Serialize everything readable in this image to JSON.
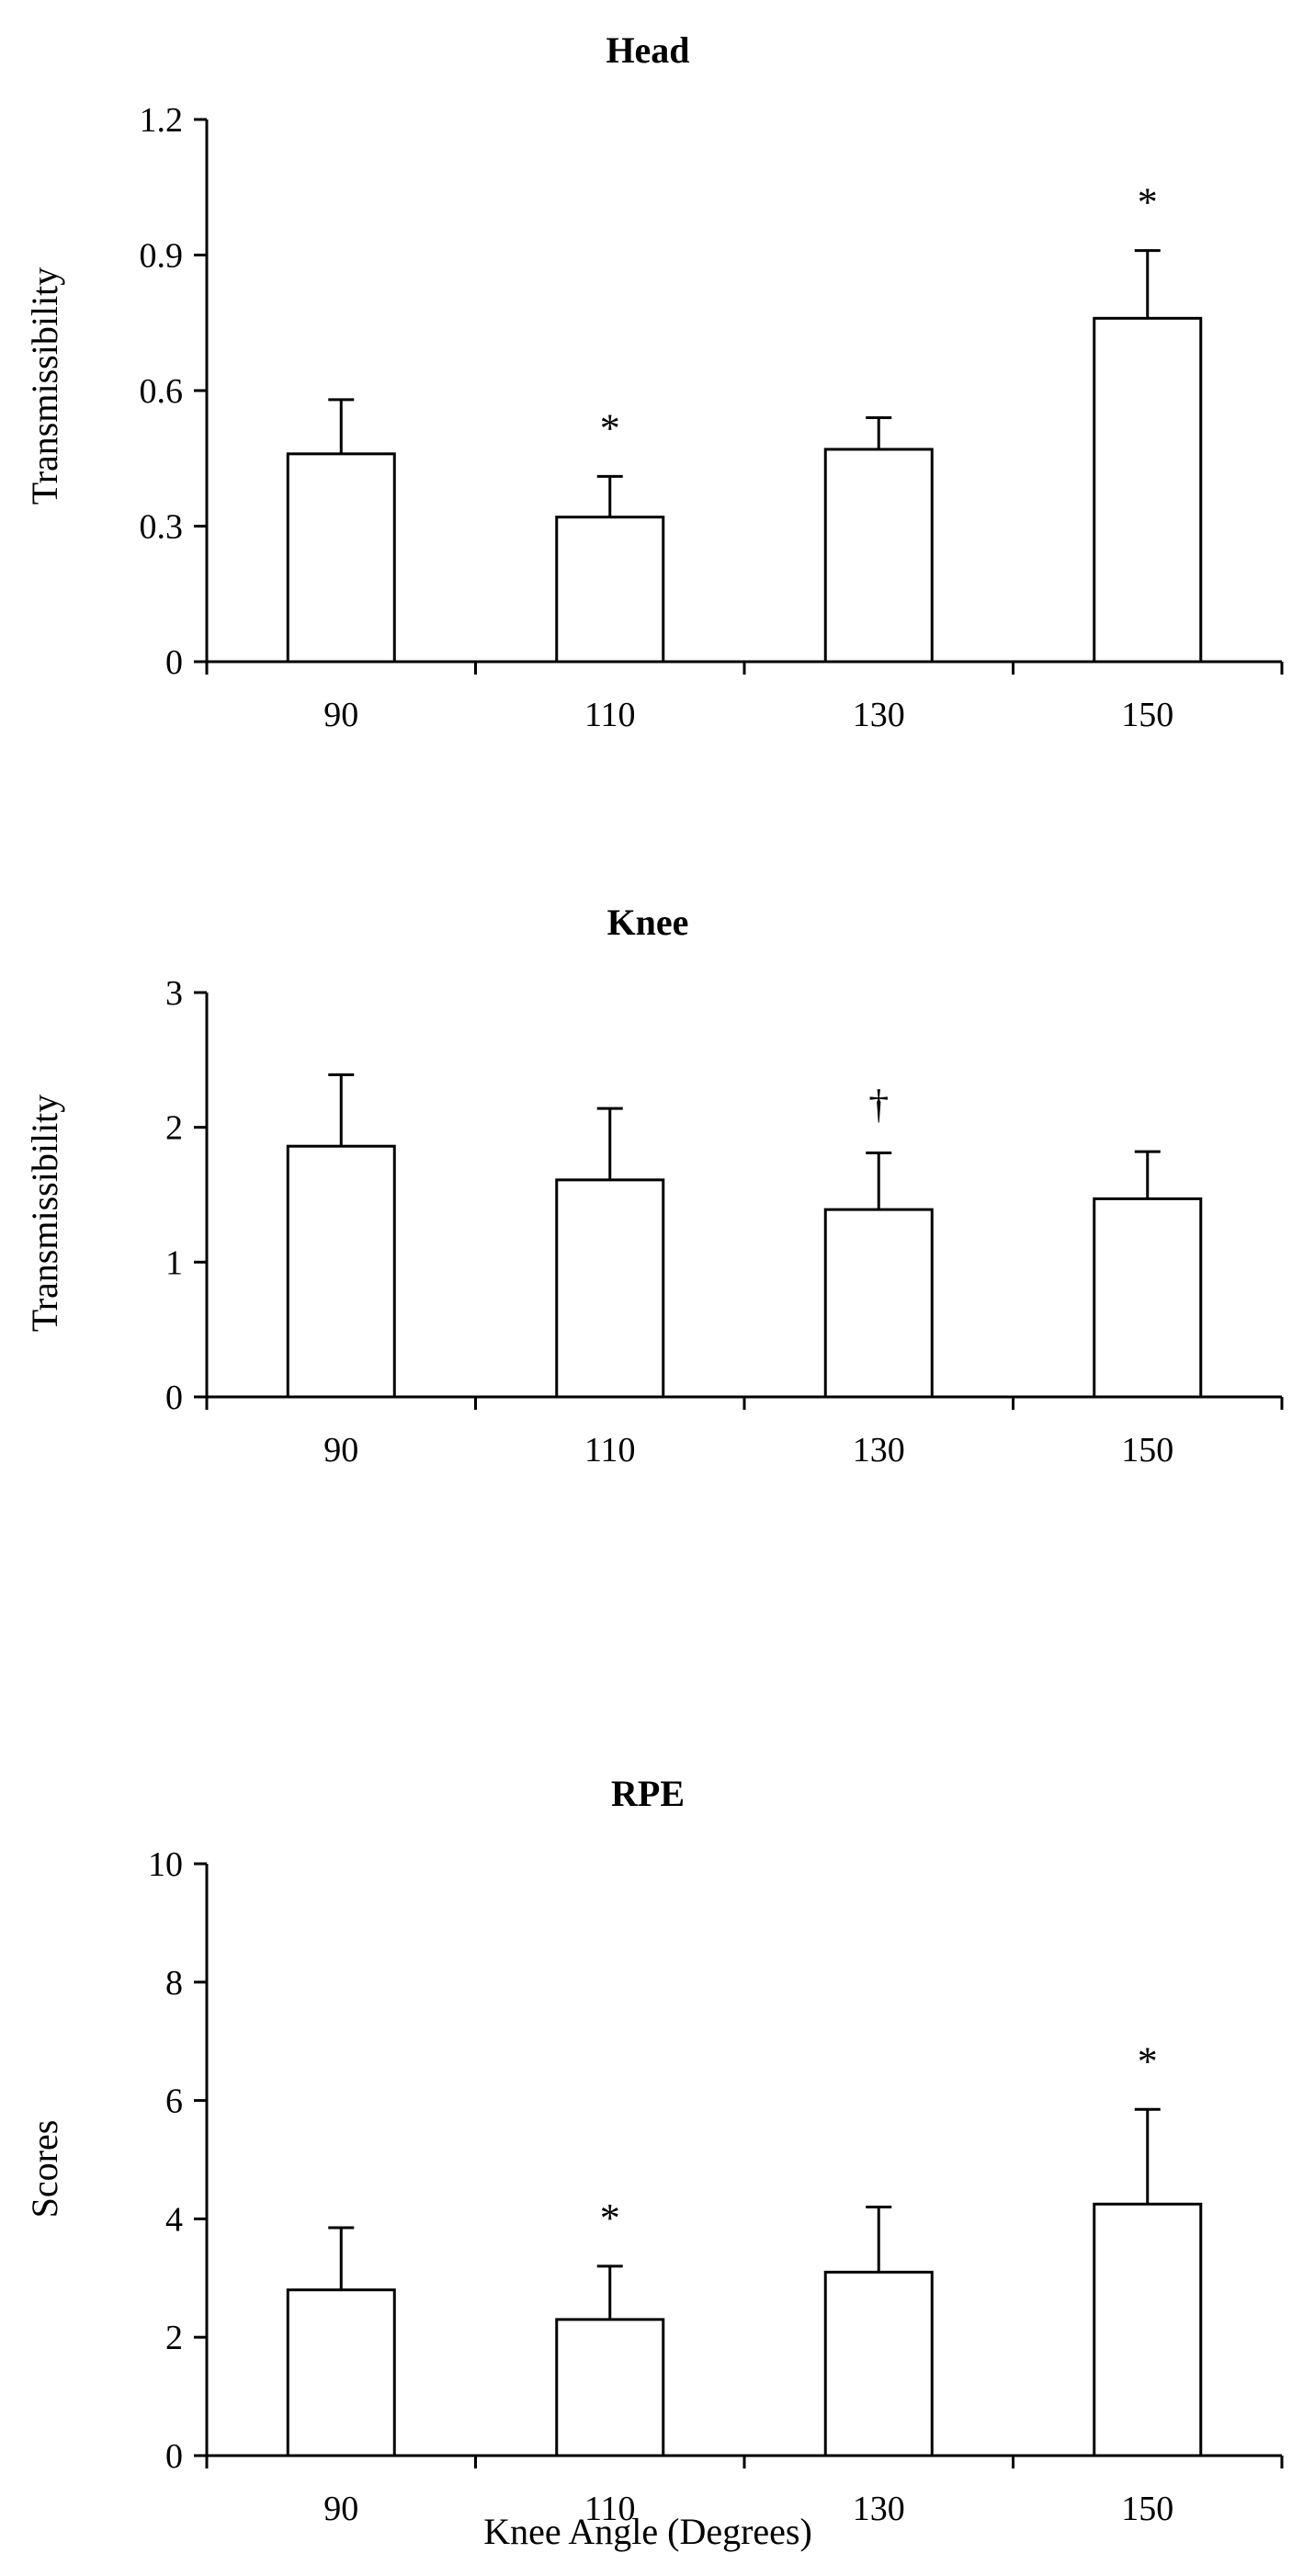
{
  "chart_data": [
    {
      "type": "bar",
      "title": "Head",
      "ylabel": "Transmissibility",
      "xlabel": "",
      "categories": [
        "90",
        "110",
        "130",
        "150"
      ],
      "values": [
        0.46,
        0.32,
        0.47,
        0.76
      ],
      "errors": [
        0.12,
        0.09,
        0.07,
        0.15
      ],
      "annotations": [
        "",
        "*",
        "",
        "*"
      ],
      "ylim": [
        0,
        1.2
      ],
      "yticks": [
        "0",
        "0.3",
        "0.6",
        "0.9",
        "1.2"
      ],
      "ytick_values": [
        0,
        0.3,
        0.6,
        0.9,
        1.2
      ]
    },
    {
      "type": "bar",
      "title": "Knee",
      "ylabel": "Transmissibility",
      "xlabel": "",
      "categories": [
        "90",
        "110",
        "130",
        "150"
      ],
      "values": [
        1.86,
        1.61,
        1.39,
        1.47
      ],
      "errors": [
        0.53,
        0.53,
        0.42,
        0.35
      ],
      "annotations": [
        "",
        "",
        "†",
        ""
      ],
      "ylim": [
        0,
        3
      ],
      "yticks": [
        "0",
        "1",
        "2",
        "3"
      ],
      "ytick_values": [
        0,
        1,
        2,
        3
      ]
    },
    {
      "type": "bar",
      "title": "RPE",
      "ylabel": "Scores",
      "xlabel": "Knee Angle (Degrees)",
      "categories": [
        "90",
        "110",
        "130",
        "150"
      ],
      "values": [
        2.8,
        2.3,
        3.1,
        4.25
      ],
      "errors": [
        1.05,
        0.9,
        1.1,
        1.6
      ],
      "annotations": [
        "",
        "*",
        "",
        "*"
      ],
      "ylim": [
        0,
        10
      ],
      "yticks": [
        "0",
        "2",
        "4",
        "6",
        "8",
        "10"
      ],
      "ytick_values": [
        0,
        2,
        4,
        6,
        8,
        10
      ]
    }
  ]
}
